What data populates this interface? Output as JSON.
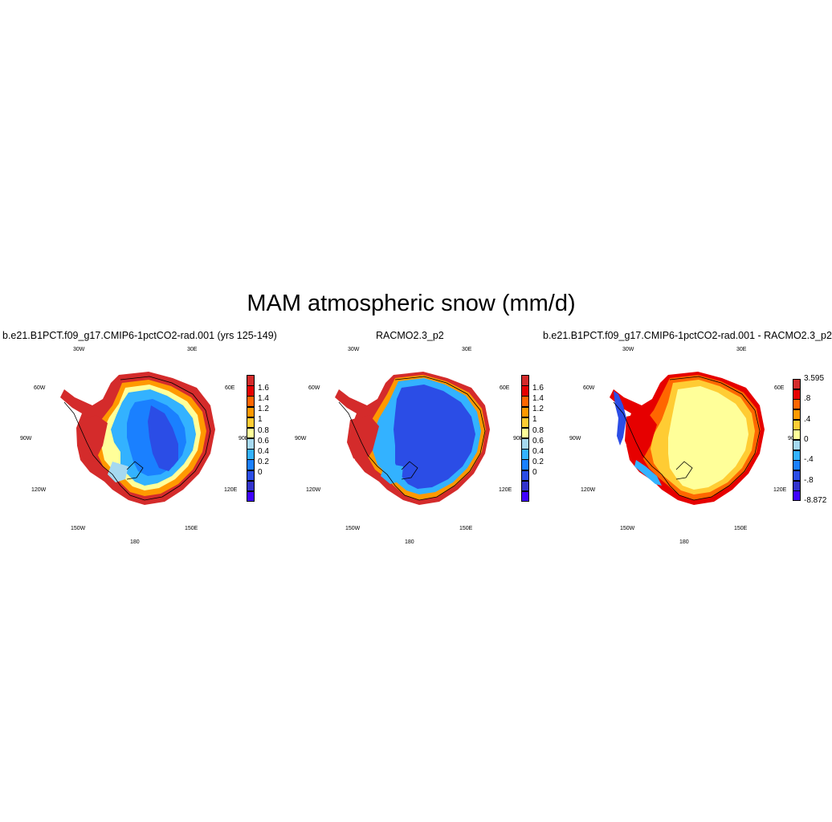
{
  "title": "MAM atmospheric snow (mm/d)",
  "lon_labels": [
    "30W",
    "30E",
    "60W",
    "60E",
    "90W",
    "90E",
    "120W",
    "120E",
    "150W",
    "150E",
    "180"
  ],
  "panels": [
    {
      "title": "b.e21.B1PCT.f09_g17.CMIP6-1pctCO2-rad.001 (yrs 125-149)",
      "colorbar": {
        "labels": [
          "1.6",
          "1.4",
          "1.2",
          "1",
          "0.8",
          "0.6",
          "0.4",
          "0.2",
          "0"
        ],
        "colors": [
          "#d42b2b",
          "#e60000",
          "#ff6600",
          "#ff9900",
          "#ffcc33",
          "#ffff99",
          "#a6d9f0",
          "#33b2ff",
          "#1a80ff",
          "#2b4de6",
          "#3333cc",
          "#4000ff"
        ]
      }
    },
    {
      "title": "RACMO2.3_p2",
      "colorbar": {
        "labels": [
          "1.6",
          "1.4",
          "1.2",
          "1",
          "0.8",
          "0.6",
          "0.4",
          "0.2",
          "0"
        ],
        "colors": [
          "#d42b2b",
          "#e60000",
          "#ff6600",
          "#ff9900",
          "#ffcc33",
          "#ffff99",
          "#a6d9f0",
          "#33b2ff",
          "#1a80ff",
          "#2b4de6",
          "#3333cc",
          "#4000ff"
        ]
      }
    },
    {
      "title": "b.e21.B1PCT.f09_g17.CMIP6-1pctCO2-rad.001 - RACMO2.3_p2",
      "colorbar": {
        "labels": [
          "3.595",
          ".8",
          ".4",
          "0",
          "-.4",
          "-.8",
          "-8.872"
        ],
        "colors": [
          "#d42b2b",
          "#e60000",
          "#ff6600",
          "#ff9900",
          "#ffcc33",
          "#ffff99",
          "#a6d9f0",
          "#33b2ff",
          "#1a80ff",
          "#2b4de6",
          "#3333cc",
          "#4000ff"
        ]
      }
    }
  ]
}
